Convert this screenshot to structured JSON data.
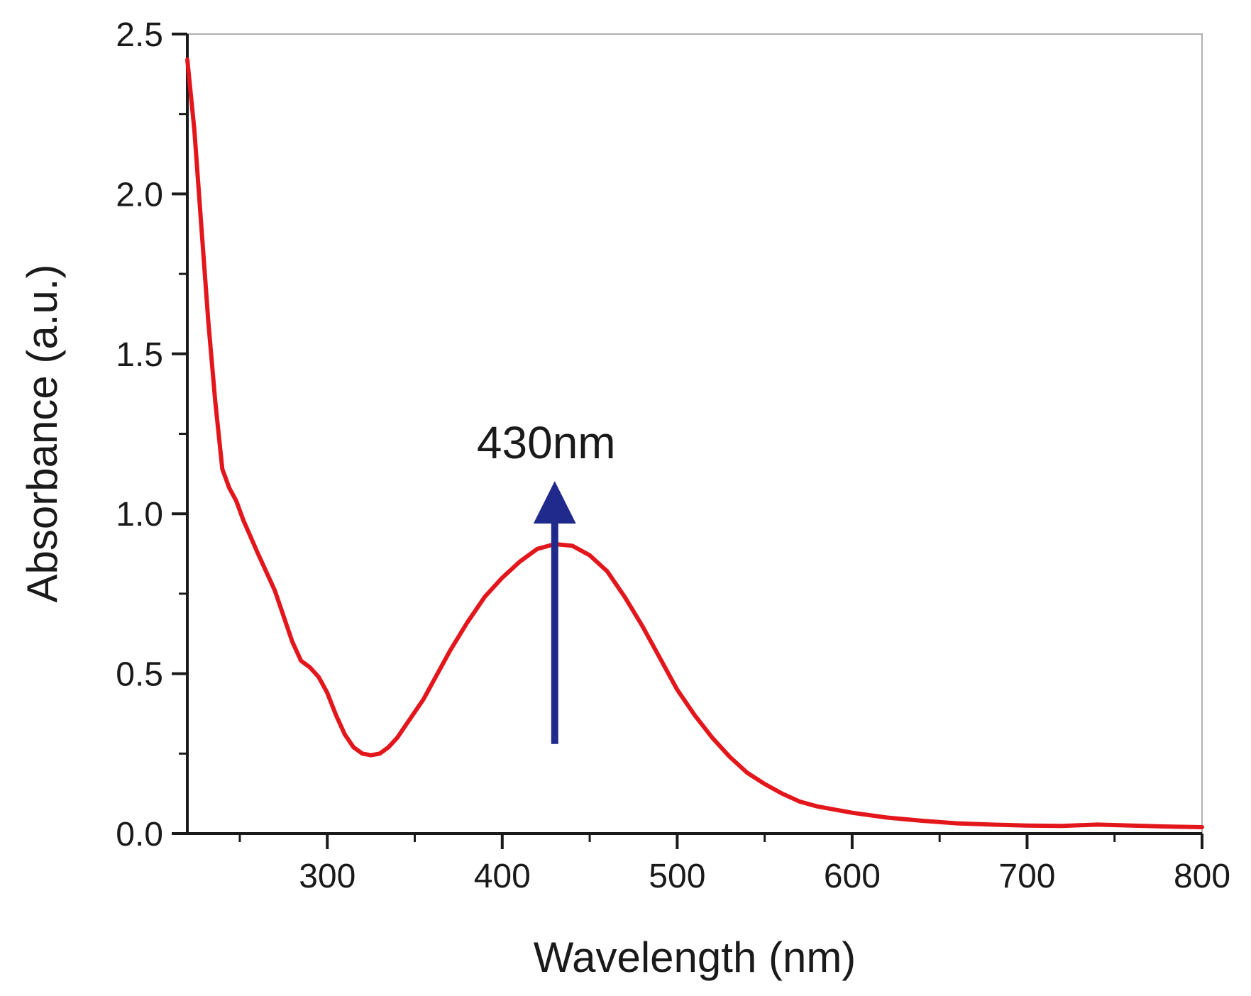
{
  "chart_data": {
    "type": "line",
    "title": "",
    "xlabel": "Wavelength (nm)",
    "ylabel": "Absorbance (a.u.)",
    "xlim": [
      220,
      800
    ],
    "ylim": [
      0,
      2.5
    ],
    "xticks": [
      300,
      400,
      500,
      600,
      700,
      800
    ],
    "xtick_labels": [
      "300",
      "400",
      "500",
      "600",
      "700",
      "800"
    ],
    "xminor": [
      250,
      350,
      450,
      550,
      650,
      750
    ],
    "yticks": [
      0,
      0.5,
      1.0,
      1.5,
      2.0,
      2.5
    ],
    "ytick_labels": [
      "0.0",
      "0.5",
      "1.0",
      "1.5",
      "2.0",
      "2.5"
    ],
    "yminor": [
      0.25,
      0.75,
      1.25,
      1.75,
      2.25
    ],
    "grid": false,
    "series": [
      {
        "name": "Absorbance",
        "color": "#e3161c",
        "x": [
          220,
          224,
          228,
          232,
          236,
          240,
          244,
          248,
          252,
          256,
          260,
          265,
          270,
          275,
          280,
          285,
          290,
          295,
          300,
          305,
          310,
          315,
          320,
          325,
          330,
          335,
          340,
          345,
          350,
          355,
          360,
          370,
          380,
          390,
          400,
          410,
          420,
          430,
          440,
          450,
          460,
          470,
          480,
          490,
          500,
          510,
          520,
          530,
          540,
          550,
          560,
          570,
          580,
          590,
          600,
          620,
          640,
          660,
          680,
          700,
          720,
          740,
          760,
          780,
          800
        ],
        "values": [
          2.42,
          2.2,
          1.9,
          1.6,
          1.35,
          1.14,
          1.08,
          1.04,
          0.98,
          0.93,
          0.88,
          0.82,
          0.76,
          0.68,
          0.6,
          0.54,
          0.52,
          0.49,
          0.44,
          0.37,
          0.31,
          0.27,
          0.25,
          0.245,
          0.25,
          0.27,
          0.3,
          0.34,
          0.38,
          0.42,
          0.47,
          0.57,
          0.66,
          0.74,
          0.8,
          0.85,
          0.89,
          0.905,
          0.9,
          0.87,
          0.82,
          0.74,
          0.65,
          0.55,
          0.45,
          0.37,
          0.3,
          0.24,
          0.19,
          0.155,
          0.125,
          0.1,
          0.085,
          0.075,
          0.065,
          0.05,
          0.04,
          0.032,
          0.028,
          0.025,
          0.024,
          0.028,
          0.025,
          0.022,
          0.02
        ]
      }
    ],
    "annotations": [
      {
        "text": "430nm",
        "arrow_from": [
          430,
          0.28
        ],
        "arrow_to": [
          430,
          1.08
        ],
        "arrow_color": "#1f2a8c"
      }
    ]
  }
}
